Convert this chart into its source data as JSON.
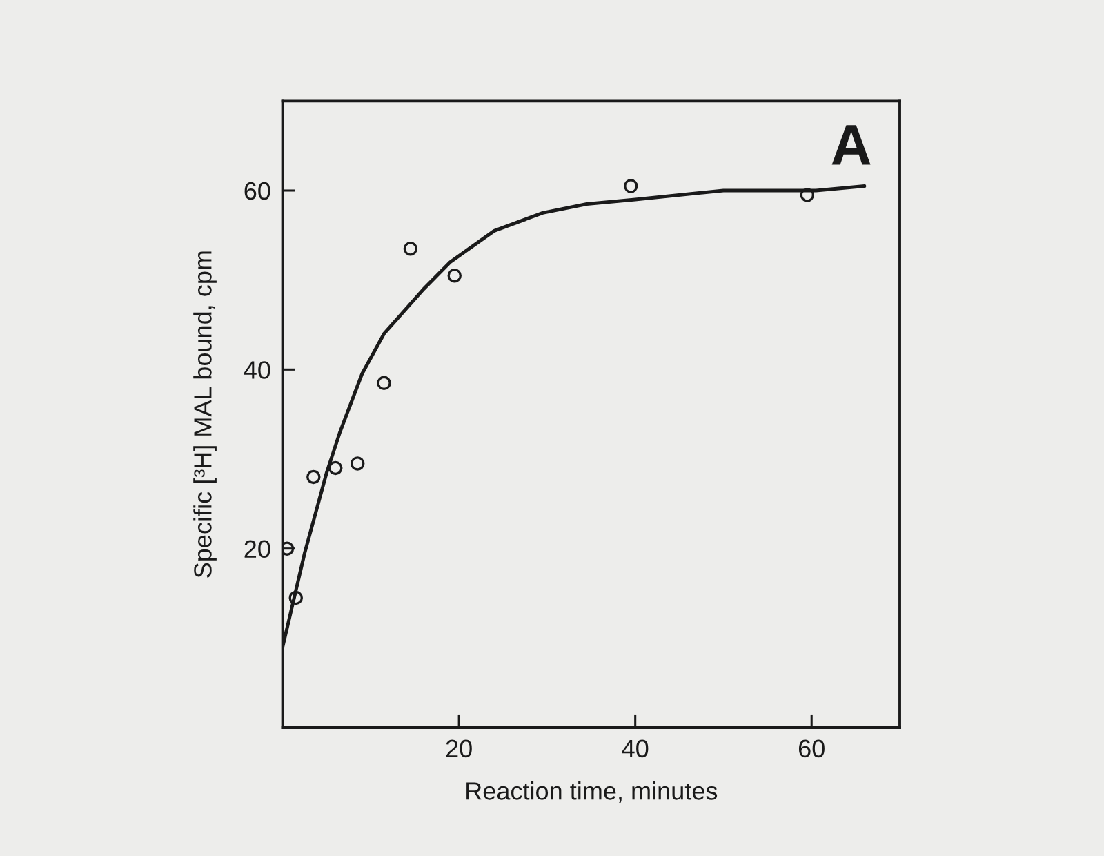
{
  "chart_data": {
    "type": "scatter",
    "xlabel": "Reaction time, minutes",
    "ylabel": "Specific [³H] MAL bound, cpm",
    "annotations": [
      "A"
    ],
    "xlim": [
      0,
      70
    ],
    "xticks": [
      20,
      40,
      60
    ],
    "ylim": [
      0,
      70
    ],
    "yticks": [
      20,
      40,
      60
    ],
    "grid": false,
    "series": [
      {
        "type": "line",
        "color": "#1a1a1a",
        "marker": "none",
        "line_style": "solid",
        "x": [
          0,
          2.5,
          5,
          6.5,
          9,
          11.5,
          16,
          19,
          24,
          29.5,
          34.5,
          40,
          50,
          60.5,
          66
        ],
        "values": [
          9,
          19.5,
          28.5,
          33,
          39.5,
          44,
          49,
          52,
          55.5,
          57.5,
          58.5,
          59,
          60,
          60,
          60.5
        ]
      },
      {
        "color": "#1a1a1a",
        "marker": "circle",
        "x": [
          1.5,
          0.5,
          3.5,
          6,
          8.5,
          11.5,
          19.5,
          14.5,
          39.5,
          59.5
        ],
        "values": [
          14.5,
          20,
          28,
          29,
          29.5,
          38.5,
          50.5,
          53.5,
          60.5,
          59.5
        ]
      }
    ]
  }
}
